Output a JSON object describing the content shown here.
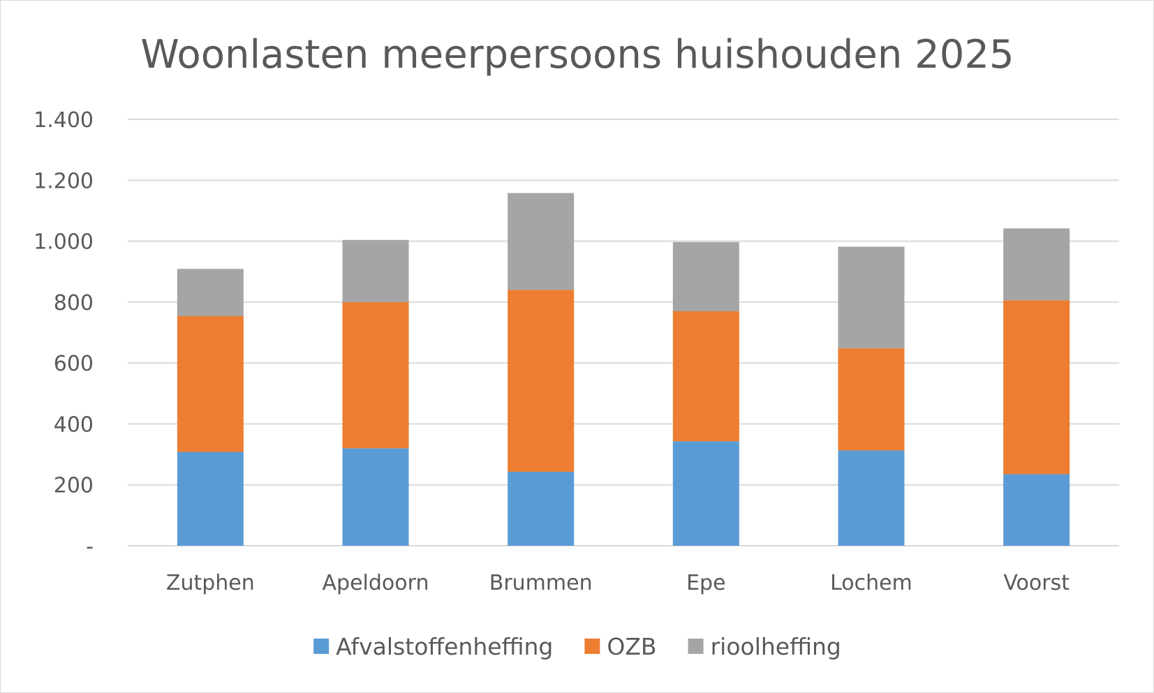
{
  "chart_data": {
    "type": "bar",
    "stacked": true,
    "title": "Woonlasten meerpersoons huishouden 2025",
    "xlabel": "",
    "ylabel": "",
    "categories": [
      "Zutphen",
      "Apeldoorn",
      "Brummen",
      "Epe",
      "Lochem",
      "Voorst"
    ],
    "series": [
      {
        "name": "Afvalstoffenheffing",
        "color": "#5b9bd5",
        "values": [
          308,
          320,
          243,
          343,
          313,
          235
        ]
      },
      {
        "name": "OZB",
        "color": "#ed7d31",
        "values": [
          446,
          480,
          597,
          427,
          335,
          571
        ]
      },
      {
        "name": "rioolheffing",
        "color": "#a5a5a5",
        "values": [
          155,
          204,
          318,
          227,
          334,
          236
        ]
      }
    ],
    "ylim": [
      0,
      1400
    ],
    "yticks": [
      0,
      200,
      400,
      600,
      800,
      1000,
      1200,
      1400
    ],
    "ytick_labels": [
      "-",
      "200",
      "400",
      "600",
      "800",
      "1.000",
      "1.200",
      "1.400"
    ],
    "grid": true,
    "gridline_color": "#d9d9d9",
    "text_color": "#595959",
    "legend_position": "bottom"
  }
}
